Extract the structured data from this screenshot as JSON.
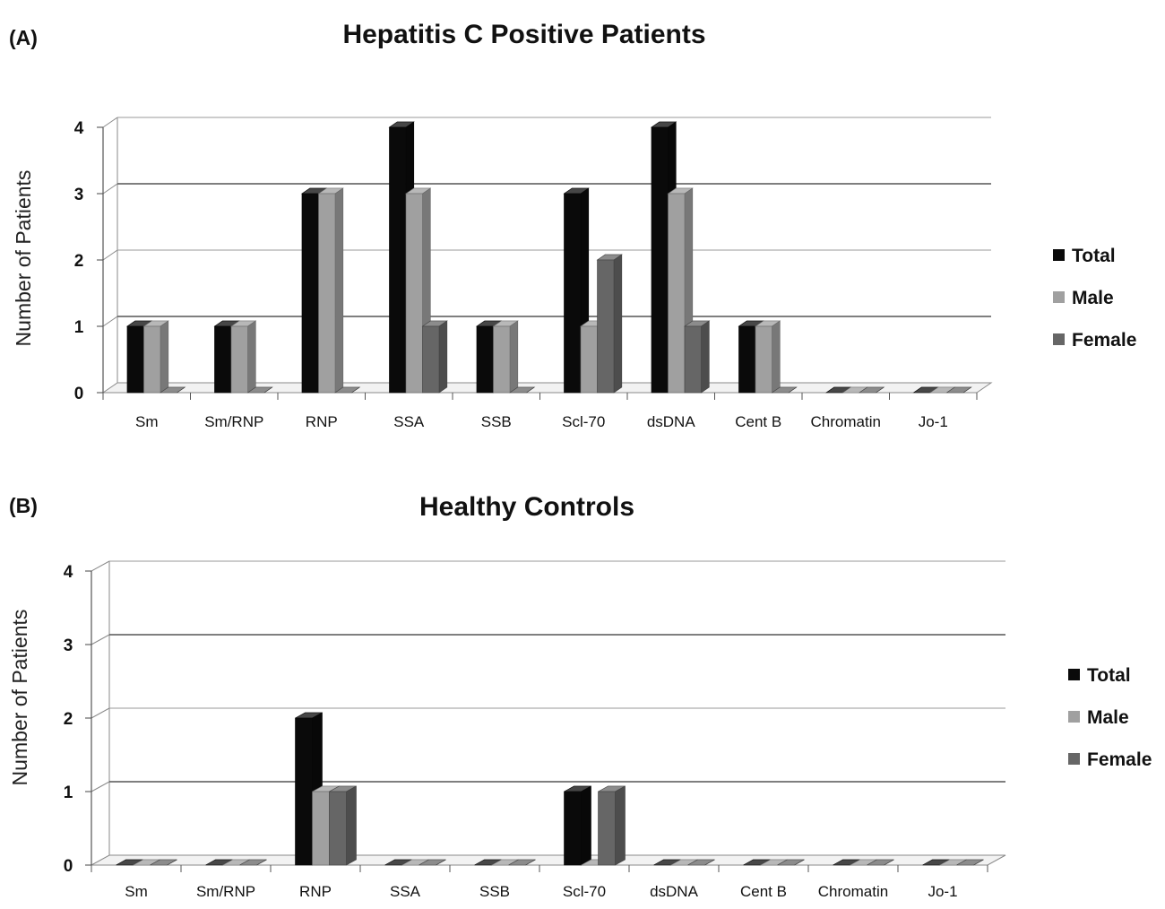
{
  "chart_data": [
    {
      "panel_label": "(A)",
      "type": "bar",
      "title": "Hepatitis C Positive Patients",
      "ylabel": "Number of Patients",
      "xlabel": "",
      "ylim": [
        0,
        4
      ],
      "yticks": [
        "0",
        "1",
        "2",
        "3",
        "4"
      ],
      "grid": true,
      "legend_position": "right",
      "categories": [
        "Sm",
        "Sm/RNP",
        "RNP",
        "SSA",
        "SSB",
        "Scl-70",
        "dsDNA",
        "Cent B",
        "Chromatin",
        "Jo-1"
      ],
      "series": [
        {
          "name": "Total",
          "color": "#0a0a0a",
          "values": [
            1,
            1,
            3,
            4,
            1,
            3,
            4,
            1,
            0,
            0
          ]
        },
        {
          "name": "Male",
          "color": "#a0a0a0",
          "values": [
            1,
            1,
            3,
            3,
            1,
            1,
            3,
            1,
            0,
            0
          ]
        },
        {
          "name": "Female",
          "color": "#666666",
          "values": [
            0,
            0,
            0,
            1,
            0,
            2,
            1,
            0,
            0,
            0
          ]
        }
      ]
    },
    {
      "panel_label": "(B)",
      "type": "bar",
      "title": "Healthy Controls",
      "ylabel": "Number of Patients",
      "xlabel": "",
      "ylim": [
        0,
        4
      ],
      "yticks": [
        "0",
        "1",
        "2",
        "3",
        "4"
      ],
      "grid": true,
      "legend_position": "right",
      "categories": [
        "Sm",
        "Sm/RNP",
        "RNP",
        "SSA",
        "SSB",
        "Scl-70",
        "dsDNA",
        "Cent B",
        "Chromatin",
        "Jo-1"
      ],
      "series": [
        {
          "name": "Total",
          "color": "#0a0a0a",
          "values": [
            0,
            0,
            2,
            0,
            0,
            1,
            0,
            0,
            0,
            0
          ]
        },
        {
          "name": "Male",
          "color": "#a0a0a0",
          "values": [
            0,
            0,
            1,
            0,
            0,
            0,
            0,
            0,
            0,
            0
          ]
        },
        {
          "name": "Female",
          "color": "#666666",
          "values": [
            0,
            0,
            1,
            0,
            0,
            1,
            0,
            0,
            0,
            0
          ]
        }
      ]
    }
  ]
}
